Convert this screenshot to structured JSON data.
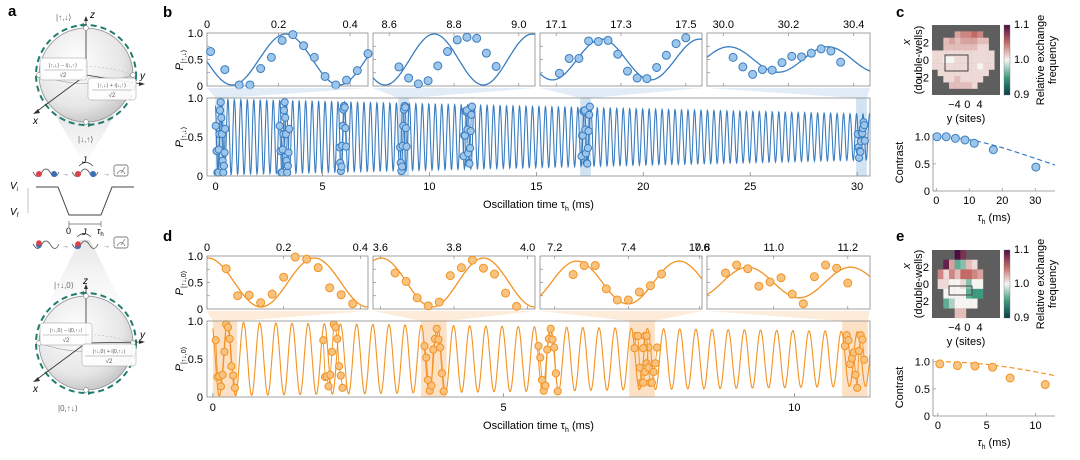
{
  "panel_labels": {
    "a": "a",
    "b": "b",
    "c": "c",
    "d": "d",
    "e": "e"
  },
  "colors": {
    "blue": "#3a7dc0",
    "blue_fill": "#9ec5ea",
    "blue_band": "#c9ddf0",
    "orange": "#f39323",
    "orange_fill": "#f8c27f",
    "orange_band": "#fbdcbc",
    "teal": "#1f7c6e",
    "red": "#d9434a",
    "navy": "#3b6fb3",
    "frame": "#8a8a8a"
  },
  "schematic": {
    "top_sphere": {
      "north": "|↑,↓⟩",
      "south": "|↓,↑⟩",
      "left_num": "|↑,↓⟩ − i|↓,↑⟩",
      "left_den": "√2",
      "right_num": "|↑,↓⟩ + i|↓,↑⟩",
      "right_den": "√2",
      "axis_z": "z",
      "axis_y": "y",
      "axis_x": "x"
    },
    "bottom_sphere": {
      "north": "|↑↓,0⟩",
      "south": "|0,↑↓⟩",
      "left_num": "|↑↓,0⟩ − i|0,↑↓⟩",
      "left_den": "√2",
      "right_num": "|↑↓,0⟩ + i|0,↑↓⟩",
      "right_den": "√2",
      "axis_z": "z",
      "axis_y": "y",
      "axis_x": "x"
    },
    "coupling": "J",
    "vi": "V",
    "vi_sub": "i",
    "vf": "V",
    "vf_sub": "f",
    "t0": "0",
    "tau": "τ",
    "tau_sub": "h"
  },
  "chart_data": [
    {
      "id": "b_insets",
      "type": "scatter",
      "color": "blue",
      "ylabel": "P|↑,↓⟩",
      "yticks": [
        "1.0",
        "0.5",
        "0"
      ],
      "ylim": [
        0,
        1
      ],
      "insets": [
        {
          "xlim": [
            0,
            0.45
          ],
          "xticks": [
            "0",
            "0.2",
            "0.4"
          ],
          "xtickvals": [
            0,
            0.2,
            0.4
          ],
          "freq": 3.35,
          "phase": 0.22,
          "amp": 0.5,
          "offset": 0.5,
          "points": [
            [
              0.01,
              0.65
            ],
            [
              0.05,
              0.31
            ],
            [
              0.09,
              0.02
            ],
            [
              0.12,
              0.02
            ],
            [
              0.15,
              0.33
            ],
            [
              0.18,
              0.54
            ],
            [
              0.21,
              0.86
            ],
            [
              0.24,
              0.97
            ],
            [
              0.27,
              0.76
            ],
            [
              0.3,
              0.54
            ],
            [
              0.33,
              0.18
            ],
            [
              0.36,
              0.02
            ],
            [
              0.39,
              0.11
            ],
            [
              0.42,
              0.29
            ],
            [
              0.45,
              0.61
            ]
          ]
        },
        {
          "xlim": [
            8.55,
            9.05
          ],
          "xticks": [
            "8.6",
            "8.8",
            "9.0"
          ],
          "xtickvals": [
            8.6,
            8.8,
            9.0
          ],
          "freq": 3.3,
          "phase": 0.86,
          "amp": 0.5,
          "offset": 0.5,
          "points": [
            [
              8.63,
              0.36
            ],
            [
              8.66,
              0.15
            ],
            [
              8.69,
              0.04
            ],
            [
              8.72,
              0.1
            ],
            [
              8.75,
              0.38
            ],
            [
              8.78,
              0.65
            ],
            [
              8.81,
              0.87
            ],
            [
              8.84,
              0.92
            ],
            [
              8.87,
              0.9
            ],
            [
              8.9,
              0.62
            ],
            [
              8.93,
              0.37
            ]
          ]
        },
        {
          "xlim": [
            17.05,
            17.55
          ],
          "xticks": [
            "17.1",
            "17.3",
            "17.5"
          ],
          "xtickvals": [
            17.1,
            17.3,
            17.5
          ],
          "freq": 3.3,
          "phase": 17.24,
          "amp": 0.4,
          "offset": 0.5,
          "points": [
            [
              17.11,
              0.24
            ],
            [
              17.14,
              0.52
            ],
            [
              17.17,
              0.52
            ],
            [
              17.2,
              0.85
            ],
            [
              17.23,
              0.84
            ],
            [
              17.26,
              0.86
            ],
            [
              17.29,
              0.6
            ],
            [
              17.32,
              0.28
            ],
            [
              17.35,
              0.15
            ],
            [
              17.38,
              0.14
            ],
            [
              17.41,
              0.35
            ],
            [
              17.44,
              0.58
            ],
            [
              17.47,
              0.8
            ],
            [
              17.5,
              0.91
            ]
          ]
        },
        {
          "xlim": [
            29.95,
            30.45
          ],
          "xticks": [
            "30.0",
            "30.2",
            "30.4"
          ],
          "xtickvals": [
            30.0,
            30.2,
            30.4
          ],
          "freq": 3.3,
          "phase": 30.32,
          "amp": 0.25,
          "offset": 0.5,
          "points": [
            [
              30.03,
              0.54
            ],
            [
              30.06,
              0.36
            ],
            [
              30.09,
              0.22
            ],
            [
              30.12,
              0.31
            ],
            [
              30.15,
              0.3
            ],
            [
              30.18,
              0.44
            ],
            [
              30.21,
              0.56
            ],
            [
              30.24,
              0.55
            ],
            [
              30.27,
              0.62
            ],
            [
              30.3,
              0.7
            ],
            [
              30.33,
              0.66
            ],
            [
              30.36,
              0.45
            ]
          ]
        }
      ]
    },
    {
      "id": "b_main",
      "type": "line",
      "color": "blue",
      "xlabel": "Oscillation time τ",
      "xlabel_sub": "h",
      "xlabel_unit": " (ms)",
      "ylabel": "P|↑,↓⟩",
      "xlim": [
        -0.4,
        30.6
      ],
      "ylim": [
        0,
        1
      ],
      "xticks": [
        "0",
        "5",
        "10",
        "15",
        "20",
        "25",
        "30"
      ],
      "xtickvals": [
        0,
        5,
        10,
        15,
        20,
        25,
        30
      ],
      "yticks": [
        "1.0",
        "0.5",
        "0"
      ],
      "freq": 3.3,
      "amp_start": 0.5,
      "amp_end": 0.3,
      "bands": [
        [
          0,
          0.45
        ],
        [
          8.55,
          9.05
        ],
        [
          17.05,
          17.55
        ],
        [
          29.95,
          30.45
        ]
      ]
    },
    {
      "id": "d_insets",
      "type": "scatter",
      "color": "orange",
      "ylabel": "P|↑↓,0⟩",
      "yticks": [
        "1.0",
        "0.5",
        "0"
      ],
      "ylim": [
        0,
        1
      ],
      "insets": [
        {
          "xlim": [
            0,
            0.42
          ],
          "xticks": [
            "0",
            "0.2",
            "0.4"
          ],
          "xtickvals": [
            0,
            0.2,
            0.4
          ],
          "freq": 3.6,
          "phase": 0.28,
          "amp": 0.48,
          "offset": 0.5,
          "points": [
            [
              0.05,
              0.76
            ],
            [
              0.08,
              0.25
            ],
            [
              0.11,
              0.26
            ],
            [
              0.14,
              0.12
            ],
            [
              0.17,
              0.28
            ],
            [
              0.2,
              0.6
            ],
            [
              0.23,
              0.98
            ],
            [
              0.26,
              0.94
            ],
            [
              0.29,
              0.78
            ],
            [
              0.32,
              0.4
            ],
            [
              0.35,
              0.27
            ],
            [
              0.38,
              0.1
            ]
          ]
        },
        {
          "xlim": [
            3.58,
            4.02
          ],
          "xticks": [
            "3.6",
            "3.8",
            "4.0"
          ],
          "xtickvals": [
            3.6,
            3.8,
            4.0
          ],
          "freq": 3.6,
          "phase": 3.88,
          "amp": 0.48,
          "offset": 0.5,
          "points": [
            [
              3.64,
              0.68
            ],
            [
              3.67,
              0.52
            ],
            [
              3.7,
              0.21
            ],
            [
              3.73,
              0.06
            ],
            [
              3.76,
              0.13
            ],
            [
              3.79,
              0.63
            ],
            [
              3.82,
              0.78
            ],
            [
              3.85,
              0.92
            ],
            [
              3.88,
              0.77
            ],
            [
              3.91,
              0.66
            ],
            [
              3.94,
              0.3
            ],
            [
              3.97,
              0.05
            ]
          ]
        },
        {
          "xlim": [
            7.16,
            7.6
          ],
          "xticks": [
            "7.2",
            "7.4",
            "7.6"
          ],
          "xtickvals": [
            7.2,
            7.4,
            7.6
          ],
          "freq": 3.6,
          "phase": 7.26,
          "amp": 0.42,
          "offset": 0.5,
          "points": [
            [
              7.25,
              0.65
            ],
            [
              7.28,
              0.82
            ],
            [
              7.31,
              0.82
            ],
            [
              7.34,
              0.38
            ],
            [
              7.37,
              0.17
            ],
            [
              7.4,
              0.17
            ],
            [
              7.43,
              0.32
            ],
            [
              7.46,
              0.44
            ],
            [
              7.49,
              0.66
            ]
          ]
        },
        {
          "xlim": [
            10.82,
            11.26
          ],
          "xticks": [
            "10.8",
            "11.0",
            "11.2"
          ],
          "xtickvals": [
            10.8,
            11.0,
            11.2
          ],
          "freq": 3.6,
          "phase": 10.93,
          "amp": 0.3,
          "offset": 0.5,
          "points": [
            [
              10.87,
              0.68
            ],
            [
              10.9,
              0.83
            ],
            [
              10.93,
              0.76
            ],
            [
              10.96,
              0.43
            ],
            [
              10.99,
              0.51
            ],
            [
              11.02,
              0.59
            ],
            [
              11.05,
              0.28
            ],
            [
              11.08,
              0.1
            ],
            [
              11.11,
              0.61
            ],
            [
              11.14,
              0.83
            ],
            [
              11.17,
              0.77
            ],
            [
              11.2,
              0.49
            ]
          ]
        }
      ]
    },
    {
      "id": "d_main",
      "type": "line",
      "color": "orange",
      "xlabel": "Oscillation time τ",
      "xlabel_sub": "h",
      "xlabel_unit": " (ms)",
      "ylabel": "P|↑↓,0⟩",
      "xlim": [
        -0.1,
        11.3
      ],
      "ylim": [
        0,
        1
      ],
      "xticks": [
        "0",
        "5",
        "10"
      ],
      "xtickvals": [
        0,
        5,
        10
      ],
      "yticks": [
        "1.0",
        "0.5",
        "0"
      ],
      "freq": 3.6,
      "amp_start": 0.5,
      "amp_end": 0.37,
      "bands": [
        [
          0,
          0.42
        ],
        [
          3.58,
          4.02
        ],
        [
          7.16,
          7.6
        ],
        [
          10.82,
          11.26
        ]
      ]
    },
    {
      "id": "c_heatmap",
      "type": "heatmap",
      "xlabel": "y (sites)",
      "ylabel": "x",
      "ylabel2": "(double-wells)",
      "xticks": [
        "−4",
        "0",
        "4"
      ],
      "yticks": [
        "2",
        "0",
        "−2"
      ],
      "colorbar_label": "Relative exchange",
      "colorbar_label2": "frequency",
      "colorbar_ticks": [
        "1.1",
        "1.0",
        "0.9"
      ],
      "clim": [
        0.9,
        1.1
      ],
      "values": [
        [
          null,
          null,
          null,
          null,
          null,
          null,
          null,
          null,
          null,
          null,
          null,
          null
        ],
        [
          null,
          null,
          null,
          null,
          1.03,
          1.04,
          1.04,
          1.05,
          1.04,
          null,
          null,
          null
        ],
        [
          null,
          null,
          1.02,
          1.03,
          1.02,
          1.03,
          1.03,
          1.03,
          1.02,
          1.02,
          null,
          null
        ],
        [
          null,
          null,
          1.02,
          1.02,
          1.02,
          1.02,
          1.02,
          1.02,
          1.01,
          1.01,
          null,
          null
        ],
        [
          1.01,
          1.01,
          1.01,
          1.01,
          1.01,
          1.01,
          1.01,
          1.01,
          1.01,
          1.01,
          1.01,
          null
        ],
        [
          1.01,
          1.01,
          1.0,
          1.0,
          1.01,
          1.01,
          1.01,
          1.01,
          1.01,
          1.01,
          1.01,
          null
        ],
        [
          1.01,
          1.01,
          1.01,
          1.01,
          1.01,
          1.01,
          1.01,
          1.01,
          1.0,
          1.01,
          1.01,
          null
        ],
        [
          null,
          1.01,
          1.01,
          1.01,
          1.01,
          1.01,
          1.01,
          1.01,
          1.01,
          1.01,
          null,
          null
        ],
        [
          null,
          null,
          1.01,
          1.01,
          1.02,
          1.01,
          1.01,
          1.01,
          1.01,
          null,
          null,
          null
        ],
        [
          null,
          null,
          null,
          1.02,
          1.02,
          1.02,
          1.02,
          1.01,
          null,
          null,
          null,
          null
        ],
        [
          null,
          null,
          null,
          null,
          null,
          null,
          null,
          null,
          null,
          null,
          null,
          null
        ]
      ]
    },
    {
      "id": "c_contrast",
      "type": "scatter",
      "color": "blue",
      "xlabel": "τ",
      "xlabel_sub": "h",
      "xlabel_unit": " (ms)",
      "ylabel": "Contrast",
      "xlim": [
        -1,
        36
      ],
      "ylim": [
        0,
        1.05
      ],
      "xticks": [
        "0",
        "10",
        "20",
        "30"
      ],
      "xtickvals": [
        0,
        10,
        20,
        30
      ],
      "yticks": [
        "1.0",
        "0.5",
        "0"
      ],
      "ytickvals": [
        1.0,
        0.5,
        0
      ],
      "points": [
        [
          0.2,
          1.0
        ],
        [
          3,
          1.0
        ],
        [
          5.8,
          0.97
        ],
        [
          8.7,
          0.94
        ],
        [
          11.5,
          0.88
        ],
        [
          17.3,
          0.76
        ],
        [
          30.2,
          0.44
        ]
      ],
      "fit_decay_ms": 42
    },
    {
      "id": "e_heatmap",
      "type": "heatmap",
      "xlabel": "y (sites)",
      "ylabel": "x",
      "ylabel2": "(double-wells)",
      "xticks": [
        "−4",
        "0",
        "4"
      ],
      "yticks": [
        "2",
        "0",
        "−2"
      ],
      "colorbar_label": "Relative exchange",
      "colorbar_label2": "frequency",
      "colorbar_ticks": [
        "1.1",
        "1.0",
        "0.9"
      ],
      "clim": [
        0.9,
        1.1
      ],
      "values": [
        [
          null,
          null,
          null,
          null,
          1.1,
          1.08,
          null,
          null,
          null,
          null,
          null,
          null
        ],
        [
          null,
          null,
          1.09,
          1.03,
          0.96,
          0.97,
          1.02,
          1.01,
          null,
          null,
          null,
          null
        ],
        [
          null,
          1.04,
          1.01,
          1.04,
          1.02,
          1.05,
          1.05,
          1.04,
          1.03,
          null,
          null,
          null
        ],
        [
          null,
          1.01,
          1.01,
          1.0,
          1.0,
          1.01,
          0.97,
          1.0,
          1.0,
          null,
          null,
          null
        ],
        [
          null,
          null,
          1.0,
          1.0,
          1.0,
          1.0,
          0.96,
          0.95,
          0.95,
          null,
          null,
          null
        ],
        [
          null,
          null,
          0.96,
          0.98,
          1.0,
          1.0,
          1.0,
          1.0,
          null,
          null,
          null,
          null
        ],
        [
          null,
          null,
          null,
          null,
          1.02,
          1.02,
          null,
          null,
          null,
          null,
          null,
          null
        ]
      ]
    },
    {
      "id": "e_contrast",
      "type": "scatter",
      "color": "orange",
      "xlabel": "τ",
      "xlabel_sub": "h",
      "xlabel_unit": " (ms)",
      "ylabel": "Contrast",
      "xlim": [
        -0.5,
        12
      ],
      "ylim": [
        0,
        1.05
      ],
      "xticks": [
        "0",
        "5",
        "10"
      ],
      "xtickvals": [
        0,
        5,
        10
      ],
      "yticks": [
        "1.0",
        "0.5",
        "0"
      ],
      "ytickvals": [
        1.0,
        0.5,
        0
      ],
      "points": [
        [
          0.2,
          0.96
        ],
        [
          2,
          0.93
        ],
        [
          3.8,
          0.92
        ],
        [
          5.6,
          0.9
        ],
        [
          7.4,
          0.7
        ],
        [
          11,
          0.58
        ]
      ],
      "fit_decay_ms": 22
    }
  ]
}
